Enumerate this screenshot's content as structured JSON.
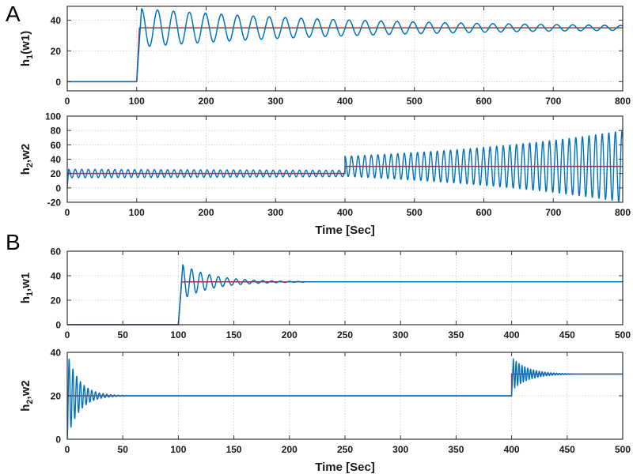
{
  "figure": {
    "background": "#ffffff",
    "panel_labels": {
      "a": "A",
      "b": "B"
    }
  },
  "colors": {
    "response_blue": "#0072bd",
    "reference_red": "#cb2026",
    "grid": "#cdcdcd",
    "axis": "#333333",
    "text": "#1a1a1a"
  },
  "chart_data": [
    {
      "id": "a1",
      "type": "line",
      "panel": "A",
      "title": "",
      "xlabel": "",
      "ylabel": {
        "pre": "h",
        "sub": "1",
        "post": "(w1)"
      },
      "xlim": [
        0,
        800
      ],
      "ylim": [
        -6,
        49
      ],
      "xticks": [
        0,
        100,
        200,
        300,
        400,
        500,
        600,
        700,
        800
      ],
      "yticks": [
        0,
        20,
        40
      ],
      "grid": true,
      "legend": false,
      "series": [
        {
          "name": "w1 setpoint",
          "color_key": "reference_red",
          "width": 1.5,
          "segments": [
            {
              "type": "const",
              "t0": 0,
              "t1": 100,
              "v": 0
            },
            {
              "type": "ramp",
              "t0": 100,
              "t1": 104,
              "v0": 0,
              "v1": 35
            },
            {
              "type": "const",
              "t0": 104,
              "t1": 800,
              "v": 35
            }
          ]
        },
        {
          "name": "h1 level",
          "color_key": "response_blue",
          "width": 1.5,
          "segments": [
            {
              "type": "const",
              "t0": 0,
              "t1": 100,
              "v": 0
            },
            {
              "type": "ramp",
              "t0": 100,
              "t1": 107,
              "v0": 0,
              "v1": 47.5
            },
            {
              "type": "osc",
              "t0": 107,
              "t1": 800,
              "center": 35,
              "amp0": 12.5,
              "amp1": 1.6,
              "period": 23,
              "phase": 1.5708
            }
          ]
        }
      ]
    },
    {
      "id": "a2",
      "type": "line",
      "panel": "A",
      "title": "",
      "xlabel": "Time [Sec]",
      "ylabel": {
        "pre": "h",
        "sub": "2",
        "post": ",w2"
      },
      "xlim": [
        0,
        800
      ],
      "ylim": [
        -20,
        100
      ],
      "xticks": [
        0,
        100,
        200,
        300,
        400,
        500,
        600,
        700,
        800
      ],
      "yticks": [
        -20,
        0,
        20,
        40,
        60,
        80,
        100
      ],
      "grid": true,
      "legend": false,
      "series": [
        {
          "name": "w2 setpoint",
          "color_key": "reference_red",
          "width": 1.5,
          "segments": [
            {
              "type": "const",
              "t0": 0,
              "t1": 400,
              "v": 20
            },
            {
              "type": "const",
              "t0": 400,
              "t1": 800,
              "v": 30
            }
          ]
        },
        {
          "name": "h2 level",
          "color_key": "response_blue",
          "width": 1.4,
          "segments": [
            {
              "type": "ramp",
              "t0": 0,
              "t1": 2,
              "v0": 0,
              "v1": 26
            },
            {
              "type": "osc",
              "t0": 2,
              "t1": 400,
              "center": 20,
              "amp0": 6,
              "amp1": 4.5,
              "period": 9.5,
              "phase": 1.5708
            },
            {
              "type": "osc",
              "t0": 400,
              "t1": 800,
              "center": 30,
              "amp0": 14,
              "amp1": 50,
              "period": 9.5,
              "phase": 1.5708
            }
          ]
        }
      ]
    },
    {
      "id": "b1",
      "type": "line",
      "panel": "B",
      "title": "",
      "xlabel": "",
      "ylabel": {
        "pre": "h",
        "sub": "1",
        "post": ",w1"
      },
      "xlim": [
        0,
        500
      ],
      "ylim": [
        0,
        60
      ],
      "xticks": [
        0,
        50,
        100,
        150,
        200,
        250,
        300,
        350,
        400,
        450,
        500
      ],
      "yticks": [
        0,
        20,
        40,
        60
      ],
      "grid": true,
      "legend": false,
      "series": [
        {
          "name": "w1 setpoint",
          "color_key": "reference_red",
          "width": 1.5,
          "segments": [
            {
              "type": "const",
              "t0": 0,
              "t1": 100,
              "v": 0
            },
            {
              "type": "ramp",
              "t0": 100,
              "t1": 103,
              "v0": 0,
              "v1": 35
            },
            {
              "type": "const",
              "t0": 103,
              "t1": 500,
              "v": 35
            }
          ]
        },
        {
          "name": "h1 level",
          "color_key": "response_blue",
          "width": 1.5,
          "segments": [
            {
              "type": "const",
              "t0": 0,
              "t1": 100,
              "v": 0
            },
            {
              "type": "ramp",
              "t0": 100,
              "t1": 104,
              "v0": 0,
              "v1": 49
            },
            {
              "type": "osc",
              "t0": 104,
              "t1": 215,
              "center": 35,
              "amp0": 14,
              "amp1": 0.25,
              "period": 8,
              "phase": 1.5708
            },
            {
              "type": "const",
              "t0": 215,
              "t1": 500,
              "v": 35
            }
          ]
        }
      ]
    },
    {
      "id": "b2",
      "type": "line",
      "panel": "B",
      "title": "",
      "xlabel": "Time [Sec]",
      "ylabel": {
        "pre": "h",
        "sub": "2",
        "post": ",w2"
      },
      "xlim": [
        0,
        500
      ],
      "ylim": [
        0,
        40
      ],
      "xticks": [
        0,
        50,
        100,
        150,
        200,
        250,
        300,
        350,
        400,
        450,
        500
      ],
      "yticks": [
        0,
        20,
        40
      ],
      "grid": true,
      "legend": false,
      "series": [
        {
          "name": "w2 setpoint",
          "color_key": "reference_red",
          "width": 1.5,
          "segments": [
            {
              "type": "const",
              "t0": 0,
              "t1": 400,
              "v": 20
            },
            {
              "type": "const",
              "t0": 400,
              "t1": 500,
              "v": 30
            }
          ]
        },
        {
          "name": "h2 level",
          "color_key": "response_blue",
          "width": 1.4,
          "segments": [
            {
              "type": "osc",
              "t0": 0,
              "t1": 55,
              "center": 20,
              "amp0": 19.8,
              "amp1": 0.12,
              "period": 3.4,
              "phase": -1.5708
            },
            {
              "type": "const",
              "t0": 55,
              "t1": 400,
              "v": 20
            },
            {
              "type": "ramp",
              "t0": 400,
              "t1": 401.5,
              "v0": 20,
              "v1": 37
            },
            {
              "type": "osc",
              "t0": 401.5,
              "t1": 455,
              "center": 30,
              "amp0": 7,
              "amp1": 0.15,
              "period": 2.6,
              "phase": 1.5708
            },
            {
              "type": "const",
              "t0": 455,
              "t1": 500,
              "v": 30
            }
          ]
        }
      ]
    }
  ]
}
